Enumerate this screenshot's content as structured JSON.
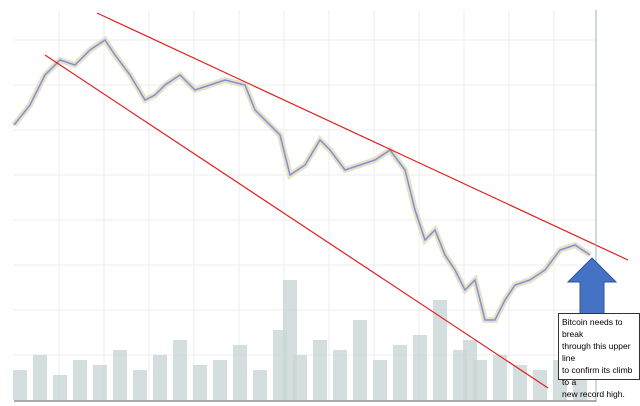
{
  "chart_data": {
    "type": "line",
    "annotation": [
      "Bitcoin needs to break",
      "through this upper line",
      "to confirm its climb to a",
      "new record high."
    ],
    "xlim": [
      14,
      596
    ],
    "ylim": [
      0,
      390
    ],
    "grid": true,
    "series": [
      {
        "name": "price",
        "color": "#7f8fd8",
        "x": [
          14,
          30,
          45,
          60,
          75,
          90,
          105,
          115,
          130,
          145,
          155,
          165,
          180,
          195,
          210,
          225,
          245,
          255,
          265,
          280,
          290,
          305,
          320,
          330,
          345,
          360,
          375,
          390,
          405,
          415,
          425,
          435,
          445,
          455,
          465,
          475,
          485,
          495,
          505,
          515,
          530,
          545,
          560,
          575,
          590
        ],
        "values": [
          275,
          295,
          325,
          340,
          335,
          350,
          360,
          345,
          325,
          300,
          305,
          315,
          325,
          310,
          315,
          320,
          315,
          290,
          280,
          265,
          225,
          235,
          260,
          250,
          230,
          235,
          240,
          250,
          230,
          190,
          160,
          170,
          145,
          130,
          110,
          120,
          80,
          80,
          100,
          115,
          120,
          130,
          150,
          155,
          145
        ]
      },
      {
        "name": "volume",
        "color": "#c9d6d6",
        "x": [
          20,
          40,
          60,
          80,
          100,
          120,
          140,
          160,
          180,
          200,
          220,
          240,
          260,
          280,
          290,
          300,
          320,
          340,
          360,
          380,
          400,
          420,
          440,
          460,
          470,
          480,
          500,
          520,
          540,
          560,
          580
        ],
        "values": [
          30,
          45,
          25,
          40,
          35,
          50,
          30,
          45,
          60,
          35,
          40,
          55,
          30,
          70,
          120,
          45,
          60,
          50,
          80,
          40,
          55,
          65,
          100,
          50,
          60,
          40,
          45,
          35,
          30,
          40,
          35
        ]
      }
    ],
    "trendlines": [
      {
        "color": "#e02020",
        "x": [
          97,
          628
        ],
        "values": [
          387,
          140
        ]
      },
      {
        "color": "#e02020",
        "x": [
          45,
          548
        ],
        "values": [
          345,
          12
        ]
      }
    ]
  }
}
